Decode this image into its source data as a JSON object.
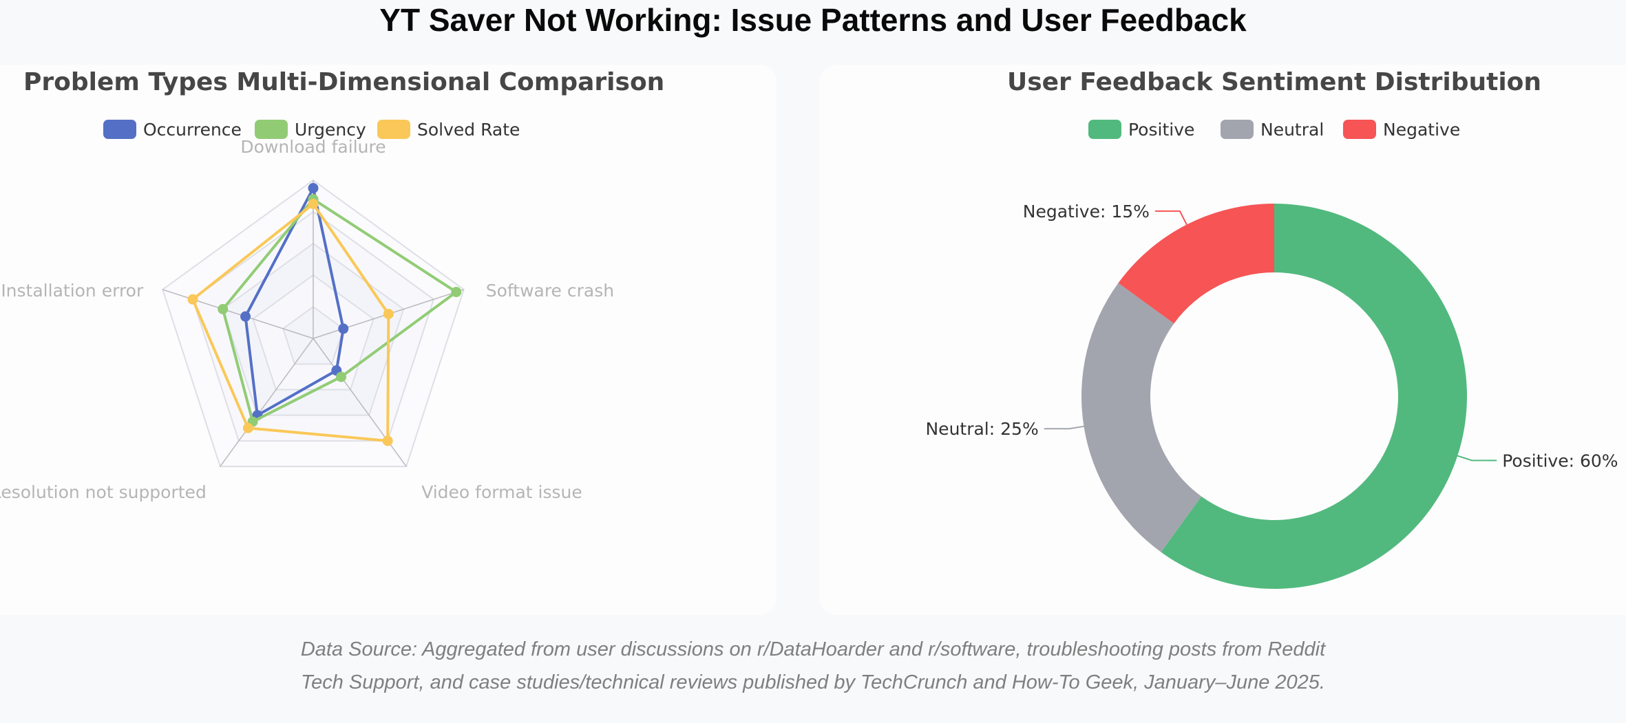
{
  "page": {
    "title": "YT Saver Not Working: Issue Patterns and User Feedback",
    "source_lines": [
      "Data Source: Aggregated from user discussions on r/DataHoarder and r/software, troubleshooting posts from Reddit",
      "Tech Support, and case studies/technical reviews published by TechCrunch and How-To Geek, January–June 2025."
    ]
  },
  "chart_data": [
    {
      "type": "radar",
      "title": "Problem Types Multi-Dimensional Comparison",
      "indicators": [
        "Download failure",
        "Software crash",
        "Video format issue",
        "Resolution not supported",
        "Installation error"
      ],
      "max": 100,
      "levels": 5,
      "legend_position": "top-center",
      "series": [
        {
          "name": "Occurrence",
          "color": "#5470c6",
          "values": [
            95,
            20,
            25,
            60,
            45
          ]
        },
        {
          "name": "Urgency",
          "color": "#91cc75",
          "values": [
            88,
            95,
            30,
            65,
            60
          ]
        },
        {
          "name": "Solved Rate",
          "color": "#fac858",
          "values": [
            85,
            50,
            80,
            70,
            80
          ]
        }
      ]
    },
    {
      "type": "pie",
      "title": "User Feedback Sentiment Distribution",
      "legend_position": "top-center",
      "slices": [
        {
          "name": "Positive",
          "value": 60,
          "color": "#52b97e",
          "label": "Positive: 60%"
        },
        {
          "name": "Neutral",
          "value": 25,
          "color": "#a2a5ae",
          "label": "Neutral: 25%"
        },
        {
          "name": "Negative",
          "value": 15,
          "color": "#f65455",
          "label": "Negative: 15%"
        }
      ]
    }
  ]
}
